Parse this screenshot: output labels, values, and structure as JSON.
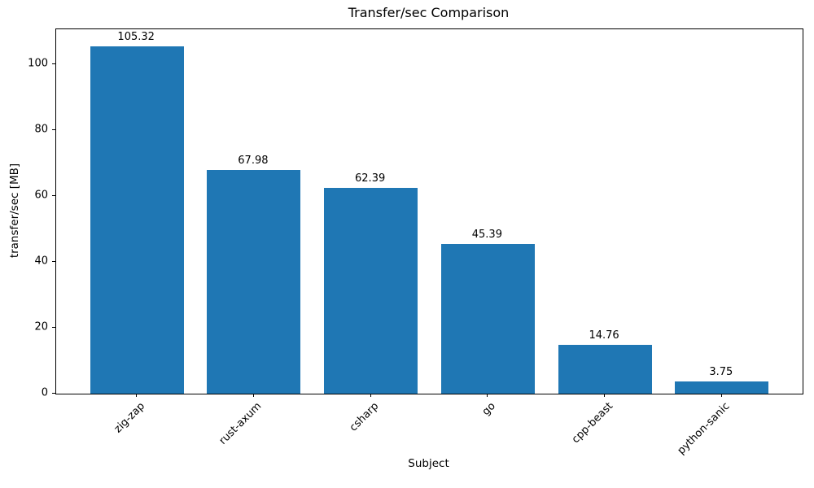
{
  "chart_data": {
    "type": "bar",
    "title": "Transfer/sec Comparison",
    "xlabel": "Subject",
    "ylabel": "transfer/sec [MB]",
    "categories": [
      "zig-zap",
      "rust-axum",
      "csharp",
      "go",
      "cpp-beast",
      "python-sanic"
    ],
    "values": [
      105.32,
      67.98,
      62.39,
      45.39,
      14.76,
      3.75
    ],
    "value_labels": [
      "105.32",
      "67.98",
      "62.39",
      "45.39",
      "14.76",
      "3.75"
    ],
    "y_ticks": [
      0,
      20,
      40,
      60,
      80,
      100
    ],
    "y_tick_labels": [
      "0",
      "20",
      "40",
      "60",
      "80",
      "100"
    ],
    "ylim": [
      0,
      110.59
    ],
    "bar_color": "#1f77b4",
    "bar_width_fraction": 0.8,
    "x_tick_rotation_deg": 45,
    "grid": false,
    "legend": null,
    "background_color": "#ffffff",
    "spine_color": "#000000"
  }
}
